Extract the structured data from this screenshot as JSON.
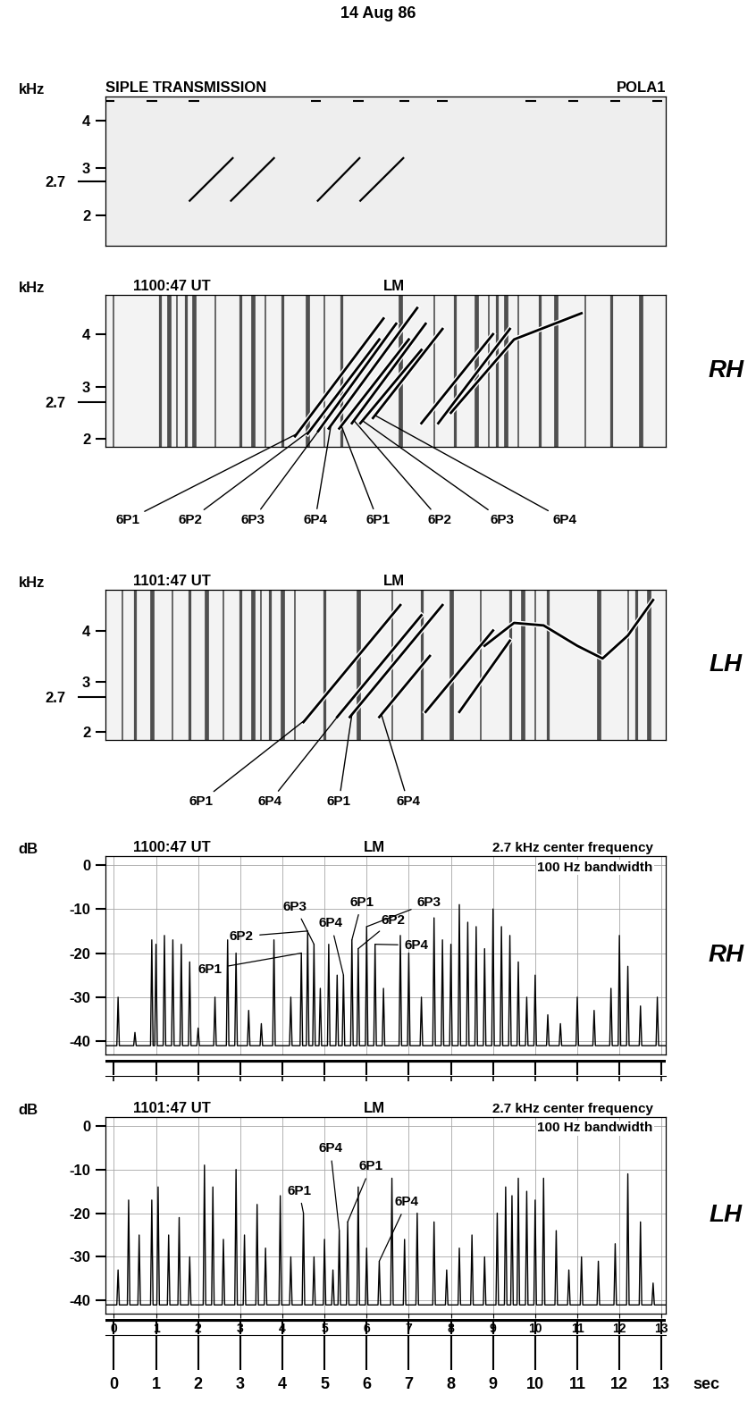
{
  "title": "14 Aug 86",
  "xlabel": "sec",
  "xlim": [
    -0.2,
    13.1
  ],
  "xticks": [
    0,
    1,
    2,
    3,
    4,
    5,
    6,
    7,
    8,
    9,
    10,
    11,
    12,
    13
  ],
  "chart_data": [
    {
      "type": "transmission",
      "title": "SIPLE TRANSMISSION",
      "subtitle": "POLA1",
      "ylabel": "kHz",
      "ylim": [
        1.35,
        4.5
      ],
      "yticks": [
        2,
        2.7,
        3,
        4
      ],
      "tick_labels": "y",
      "color": "#000000",
      "markers": {
        "y": 4.4,
        "x": [
          -0.1,
          0.9,
          1.9,
          4.8,
          5.8,
          6.9,
          7.8,
          9.9,
          10.9,
          11.9,
          12.9
        ]
      },
      "lines": [
        {
          "x": [
            1.8,
            2.82
          ],
          "values": [
            2.3,
            3.2
          ]
        },
        {
          "x": [
            2.78,
            3.8
          ],
          "values": [
            2.3,
            3.2
          ]
        },
        {
          "x": [
            4.84,
            5.83
          ],
          "values": [
            2.3,
            3.2
          ]
        },
        {
          "x": [
            5.85,
            6.87
          ],
          "values": [
            2.3,
            3.2
          ]
        }
      ]
    },
    {
      "type": "spectrogram",
      "title": "1100:47 UT",
      "subtitle": "LM",
      "side_label": "RH",
      "ylabel": "kHz",
      "ylim": [
        1.85,
        4.75
      ],
      "yticks": [
        2,
        2.7,
        3,
        4
      ],
      "tick_labels": "y",
      "color": "#000000",
      "sferics": [
        0.0,
        1.1,
        1.3,
        1.5,
        1.7,
        1.9,
        2.4,
        3.0,
        3.3,
        3.6,
        4.0,
        4.6,
        5.0,
        5.4,
        6.8,
        7.6,
        8.1,
        8.6,
        8.9,
        9.1,
        9.3,
        9.6,
        10.1,
        10.5,
        11.2,
        11.8,
        12.5
      ],
      "traces": [
        {
          "x": [
            4.3,
            6.4
          ],
          "values": [
            2.05,
            4.3
          ]
        },
        {
          "x": [
            4.6,
            6.3
          ],
          "values": [
            2.1,
            3.9
          ]
        },
        {
          "x": [
            4.85,
            6.7
          ],
          "values": [
            2.15,
            4.2
          ]
        },
        {
          "x": [
            5.1,
            7.2
          ],
          "values": [
            2.2,
            4.5
          ]
        },
        {
          "x": [
            5.35,
            7.0
          ],
          "values": [
            2.2,
            3.9
          ]
        },
        {
          "x": [
            5.65,
            7.4
          ],
          "values": [
            2.3,
            4.2
          ]
        },
        {
          "x": [
            5.85,
            7.3
          ],
          "values": [
            2.3,
            3.7
          ]
        },
        {
          "x": [
            6.15,
            7.8
          ],
          "values": [
            2.4,
            4.1
          ]
        },
        {
          "x": [
            7.3,
            9.0
          ],
          "values": [
            2.3,
            4.0
          ]
        },
        {
          "x": [
            7.7,
            9.4
          ],
          "values": [
            2.3,
            4.1
          ]
        },
        {
          "x": [
            8.0,
            9.5,
            11.1
          ],
          "values": [
            2.5,
            3.9,
            4.4
          ]
        }
      ],
      "annotations": [
        {
          "text": "6P1",
          "x": 4.35,
          "y": 2.1
        },
        {
          "text": "6P2",
          "x": 4.64,
          "y": 2.15
        },
        {
          "text": "6P3",
          "x": 4.9,
          "y": 2.2
        },
        {
          "text": "6P4",
          "x": 5.15,
          "y": 2.25
        },
        {
          "text": "6P1",
          "x": 5.4,
          "y": 2.25
        },
        {
          "text": "6P2",
          "x": 5.7,
          "y": 2.35
        },
        {
          "text": "6P3",
          "x": 5.9,
          "y": 2.35
        },
        {
          "text": "6P4",
          "x": 6.2,
          "y": 2.45
        }
      ]
    },
    {
      "type": "spectrogram",
      "title": "1101:47 UT",
      "subtitle": "LM",
      "side_label": "LH",
      "ylabel": "kHz",
      "ylim": [
        1.85,
        4.8
      ],
      "yticks": [
        2,
        2.7,
        3,
        4
      ],
      "tick_labels": "y",
      "color": "#000000",
      "sferics": [
        0.2,
        0.5,
        0.9,
        1.4,
        1.8,
        2.2,
        2.6,
        3.0,
        3.3,
        3.5,
        3.7,
        4.0,
        4.3,
        5.0,
        5.8,
        6.6,
        7.3,
        8.0,
        8.7,
        9.4,
        9.7,
        10.0,
        10.3,
        11.5,
        12.2,
        12.4,
        12.7
      ],
      "traces": [
        {
          "x": [
            4.5,
            6.8
          ],
          "values": [
            2.2,
            4.5
          ]
        },
        {
          "x": [
            5.3,
            7.3
          ],
          "values": [
            2.3,
            4.3
          ]
        },
        {
          "x": [
            5.6,
            7.8
          ],
          "values": [
            2.3,
            4.5
          ]
        },
        {
          "x": [
            6.3,
            7.5
          ],
          "values": [
            2.3,
            3.5
          ]
        },
        {
          "x": [
            7.4,
            9.0
          ],
          "values": [
            2.4,
            4.0
          ]
        },
        {
          "x": [
            8.2,
            9.4
          ],
          "values": [
            2.4,
            3.8
          ]
        },
        {
          "x": [
            8.8,
            9.5,
            10.2,
            11.0,
            11.6,
            12.2,
            12.8
          ],
          "values": [
            3.7,
            4.15,
            4.1,
            3.7,
            3.45,
            3.9,
            4.6
          ]
        }
      ],
      "annotations": [
        {
          "text": "6P1",
          "x": 4.55,
          "y": 2.25
        },
        {
          "text": "6P4",
          "x": 5.35,
          "y": 2.35
        },
        {
          "text": "6P1",
          "x": 5.65,
          "y": 2.35
        },
        {
          "text": "6P4",
          "x": 6.35,
          "y": 2.35
        }
      ]
    },
    {
      "type": "line",
      "title": "1100:47 UT",
      "subtitle": "LM",
      "side_label": "RH",
      "notes": [
        "2.7 kHz center frequency",
        "100 Hz bandwidth"
      ],
      "ylabel": "dB",
      "ylim": [
        -43,
        2
      ],
      "yticks": [
        0,
        -10,
        -20,
        -30,
        -40
      ],
      "grid": true,
      "tick_labels": "y",
      "color": "#000000",
      "floor": -41,
      "x": [
        0.1,
        0.5,
        0.9,
        1.0,
        1.2,
        1.4,
        1.6,
        1.8,
        2.0,
        2.4,
        2.7,
        2.9,
        3.2,
        3.5,
        3.8,
        4.2,
        4.45,
        4.6,
        4.75,
        4.9,
        5.1,
        5.3,
        5.45,
        5.65,
        5.8,
        6.0,
        6.2,
        6.4,
        6.8,
        7.0,
        7.3,
        7.6,
        7.8,
        8.0,
        8.2,
        8.4,
        8.6,
        8.8,
        9.0,
        9.2,
        9.4,
        9.6,
        9.8,
        10.0,
        10.3,
        10.6,
        11.0,
        11.4,
        11.8,
        12.0,
        12.2,
        12.5,
        12.9
      ],
      "values": [
        -30,
        -38,
        -17,
        -18,
        -16,
        -17,
        -18,
        -22,
        -37,
        -30,
        -17,
        -20,
        -33,
        -36,
        -17,
        -30,
        -20,
        -15,
        -18,
        -28,
        -18,
        -25,
        -25,
        -17,
        -19,
        -14,
        -18,
        -28,
        -16,
        -20,
        -30,
        -12,
        -17,
        -18,
        -9,
        -13,
        -14,
        -19,
        -10,
        -14,
        -16,
        -22,
        -30,
        -25,
        -34,
        -36,
        -30,
        -33,
        -28,
        -16,
        -23,
        -32,
        -30
      ],
      "annotations": [
        {
          "text": "6P1",
          "x": 4.45,
          "y": -20
        },
        {
          "text": "6P2",
          "x": 4.6,
          "y": -15
        },
        {
          "text": "6P3",
          "x": 4.75,
          "y": -18
        },
        {
          "text": "6P4",
          "x": 5.45,
          "y": -25
        },
        {
          "text": "6P1",
          "x": 5.65,
          "y": -17
        },
        {
          "text": "6P2",
          "x": 5.8,
          "y": -19
        },
        {
          "text": "6P3",
          "x": 6.0,
          "y": -14
        },
        {
          "text": "6P4",
          "x": 6.2,
          "y": -18
        }
      ]
    },
    {
      "type": "line",
      "title": "1101:47 UT",
      "subtitle": "LM",
      "side_label": "LH",
      "notes": [
        "2.7 kHz center frequency",
        "100 Hz bandwidth"
      ],
      "ylabel": "dB",
      "ylim": [
        -43,
        2
      ],
      "yticks": [
        0,
        -10,
        -20,
        -30,
        -40
      ],
      "grid": true,
      "color": "#000000",
      "floor": -41,
      "x": [
        0.1,
        0.35,
        0.6,
        0.9,
        1.05,
        1.3,
        1.55,
        1.8,
        2.15,
        2.35,
        2.6,
        2.9,
        3.1,
        3.4,
        3.6,
        3.95,
        4.2,
        4.5,
        4.75,
        5.0,
        5.2,
        5.35,
        5.55,
        5.8,
        6.0,
        6.3,
        6.6,
        6.9,
        7.2,
        7.6,
        7.9,
        8.2,
        8.5,
        8.8,
        9.1,
        9.3,
        9.45,
        9.6,
        9.8,
        10.0,
        10.2,
        10.5,
        10.8,
        11.1,
        11.5,
        11.9,
        12.2,
        12.5,
        12.8
      ],
      "values": [
        -33,
        -17,
        -25,
        -17,
        -14,
        -25,
        -21,
        -30,
        -9,
        -14,
        -26,
        -10,
        -25,
        -18,
        -28,
        -16,
        -30,
        -20,
        -30,
        -26,
        -33,
        -24,
        -22,
        -14,
        -28,
        -31,
        -12,
        -26,
        -20,
        -22,
        -33,
        -28,
        -25,
        -30,
        -20,
        -14,
        -16,
        -12,
        -15,
        -17,
        -12,
        -24,
        -33,
        -30,
        -31,
        -27,
        -11,
        -22,
        -36
      ],
      "annotations": [
        {
          "text": "6P1",
          "x": 4.5,
          "y": -20
        },
        {
          "text": "6P4",
          "x": 5.35,
          "y": -24
        },
        {
          "text": "6P1",
          "x": 5.55,
          "y": -22
        },
        {
          "text": "6P4",
          "x": 6.3,
          "y": -31
        }
      ]
    }
  ]
}
